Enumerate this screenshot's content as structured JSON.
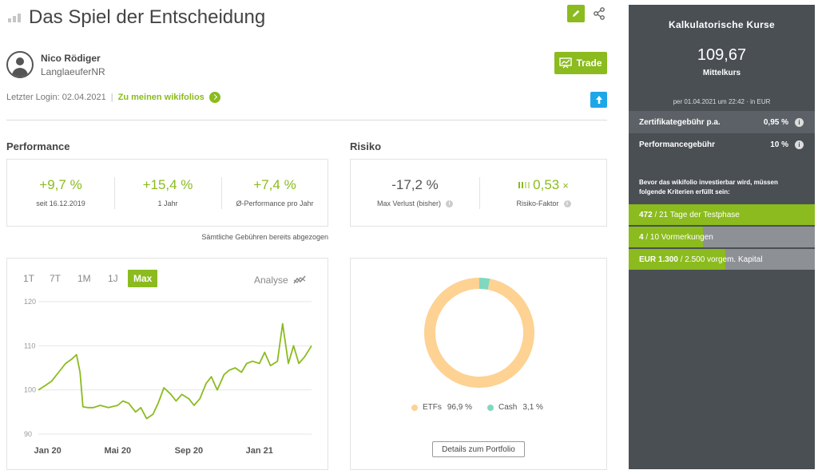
{
  "header": {
    "title": "Das Spiel der Entscheidung"
  },
  "user": {
    "name": "Nico Rödiger",
    "nickname": "LanglaeuferNR"
  },
  "login": {
    "text": "Letzter Login: 02.04.2021",
    "separator": "|",
    "link": "Zu meinen wikifolios"
  },
  "trade_label": "Trade",
  "performance": {
    "heading": "Performance",
    "stats": [
      {
        "value": "+9,7 %",
        "label": "seit 16.12.2019"
      },
      {
        "value": "+15,4 %",
        "label": "1 Jahr"
      },
      {
        "value": "+7,4 %",
        "label": "Ø-Performance pro Jahr"
      }
    ],
    "fee_note": "Sämtliche Gebühren bereits abgezogen"
  },
  "risk": {
    "heading": "Risiko",
    "max_loss_value": "-17,2 %",
    "max_loss_label": "Max Verlust (bisher)",
    "risk_factor_value": "0,53",
    "risk_factor_suffix": "×",
    "risk_factor_label": "Risiko-Faktor",
    "info_glyph": "i"
  },
  "chart_controls": {
    "ranges": [
      "1T",
      "7T",
      "1M",
      "1J",
      "Max"
    ],
    "active_range": "Max",
    "analyse_label": "Analyse"
  },
  "chart_data": {
    "type": "line",
    "xlabel": "",
    "ylabel": "",
    "ylim": [
      90,
      120
    ],
    "yticks": [
      "120",
      "110",
      "100",
      "90"
    ],
    "xticks": [
      "Jan 20",
      "Mai 20",
      "Sep 20",
      "Jan 21"
    ],
    "grid": true,
    "line_color": "#8bbb1e",
    "series": [
      {
        "x": [
          "2019-12-16",
          "2019-12-28",
          "2020-01-08",
          "2020-01-20",
          "2020-02-01",
          "2020-02-12",
          "2020-02-20",
          "2020-02-26",
          "2020-03-02",
          "2020-03-10",
          "2020-03-20",
          "2020-04-01",
          "2020-04-15",
          "2020-05-01",
          "2020-05-10",
          "2020-05-20",
          "2020-06-01",
          "2020-06-10",
          "2020-06-20",
          "2020-07-01",
          "2020-07-10",
          "2020-07-20",
          "2020-08-01",
          "2020-08-10",
          "2020-08-20",
          "2020-09-01",
          "2020-09-10",
          "2020-09-20",
          "2020-10-01",
          "2020-10-10",
          "2020-10-20",
          "2020-11-01",
          "2020-11-10",
          "2020-11-20",
          "2020-12-01",
          "2020-12-10",
          "2020-12-20",
          "2021-01-01",
          "2021-01-10",
          "2021-01-20",
          "2021-02-01",
          "2021-02-10",
          "2021-02-20",
          "2021-03-01",
          "2021-03-10",
          "2021-03-20",
          "2021-04-01"
        ],
        "values": [
          100.0,
          101.0,
          102.0,
          104.0,
          106.0,
          107.0,
          108.0,
          104.0,
          96.2,
          96.0,
          96.0,
          96.5,
          96.0,
          96.5,
          97.5,
          97.0,
          95.0,
          96.0,
          93.5,
          94.5,
          97.0,
          100.5,
          99.0,
          97.5,
          99.0,
          98.0,
          96.5,
          98.0,
          101.5,
          103.0,
          100.0,
          103.5,
          104.5,
          105.0,
          104.0,
          106.0,
          106.5,
          106.0,
          108.5,
          105.5,
          106.5,
          115.0,
          106.0,
          110.0,
          106.0,
          107.5,
          110.0
        ]
      }
    ]
  },
  "portfolio": {
    "chart_type": "donut",
    "slices": [
      {
        "name": "ETFs",
        "value": 96.9,
        "display": "96,9 %",
        "color": "#fdd293"
      },
      {
        "name": "Cash",
        "value": 3.1,
        "display": "3,1 %",
        "color": "#7fd8bf"
      }
    ],
    "details_label": "Details zum Portfolio"
  },
  "sidebar": {
    "title": "Kalkulatorische Kurse",
    "price": "109,67",
    "price_label": "Mittelkurs",
    "date_note": "per 01.04.2021 um 22:42 · in EUR",
    "fees": [
      {
        "label": "Zertifikategebühr p.a.",
        "value": "0,95 %"
      },
      {
        "label": "Performancegebühr",
        "value": "10 %"
      }
    ],
    "criteria_text": "Bevor das wikifolio investierbar wird, müssen folgende Kriterien erfüllt sein:",
    "progress": [
      {
        "strong": "472",
        "rest": " / 21 Tage der Testphase",
        "fraction": 1.0
      },
      {
        "strong": "4",
        "rest": " / 10 Vormerkungen",
        "fraction": 0.4
      },
      {
        "strong": "EUR 1.300",
        "rest": " / 2.500 vorgem. Kapital",
        "fraction": 0.52
      }
    ]
  },
  "colors": {
    "accent": "#8bbb1e",
    "blue": "#1ea7e8",
    "sidebar_bg": "#4a4f54"
  },
  "icons": {
    "edit": "pencil-icon",
    "share": "share-icon",
    "avatar": "user-avatar-icon",
    "trade": "presentation-chart-icon",
    "login_link": "arrow-right-circle-icon",
    "scroll_up": "arrow-up-icon",
    "analyse": "chart-analysis-icon",
    "risk": "risk-bars-icon",
    "title": "bar-chart-icon"
  }
}
